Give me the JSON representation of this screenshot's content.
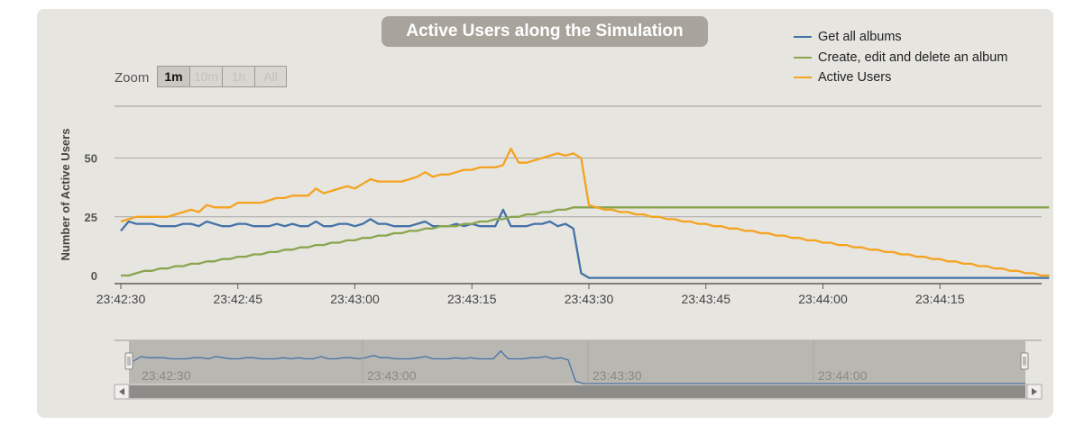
{
  "chart_data": {
    "type": "line",
    "title": "Active Users along the Simulation",
    "ylabel": "Number of Active Users",
    "xlabel": "",
    "ylim": [
      -5,
      75
    ],
    "yticks": [
      "0",
      "25",
      "50"
    ],
    "yticks_values": [
      0,
      25,
      50
    ],
    "xticks": [
      "23:42:30",
      "23:42:45",
      "23:43:00",
      "23:43:15",
      "23:43:30",
      "23:43:45",
      "23:44:00",
      "23:44:15"
    ],
    "x_start": "23:42:30",
    "x_step_seconds": 1,
    "xlim": [
      0,
      119
    ],
    "legend_position": "top-right",
    "series": [
      {
        "name": "Get all albums",
        "color": "#4572a7",
        "values": [
          19,
          23,
          22,
          22,
          22,
          21,
          21,
          21,
          22,
          22,
          21,
          23,
          22,
          21,
          21,
          22,
          22,
          21,
          21,
          21,
          22,
          21,
          22,
          21,
          21,
          23,
          21,
          21,
          22,
          22,
          21,
          22,
          24,
          22,
          22,
          21,
          21,
          21,
          22,
          23,
          21,
          21,
          21,
          22,
          21,
          22,
          21,
          21,
          21,
          28,
          21,
          21,
          21,
          22,
          22,
          23,
          21,
          22,
          20,
          1,
          -1,
          -1,
          -1,
          -1,
          -1,
          -1,
          -1,
          -1,
          -1,
          -1,
          -1,
          -1,
          -1,
          -1,
          -1,
          -1,
          -1,
          -1,
          -1,
          -1,
          -1,
          -1,
          -1,
          -1,
          -1,
          -1,
          -1,
          -1,
          -1,
          -1,
          -1,
          -1,
          -1,
          -1,
          -1,
          -1,
          -1,
          -1,
          -1,
          -1,
          -1,
          -1,
          -1,
          -1,
          -1,
          -1,
          -1,
          -1,
          -1,
          -1,
          -1,
          -1,
          -1,
          -1,
          -1,
          -1,
          -1,
          -1,
          -1,
          -1
        ]
      },
      {
        "name": "Create, edit and delete an album",
        "color": "#89a54e",
        "values": [
          0,
          0,
          1,
          2,
          2,
          3,
          3,
          4,
          4,
          5,
          5,
          6,
          6,
          7,
          7,
          8,
          8,
          9,
          9,
          10,
          10,
          11,
          11,
          12,
          12,
          13,
          13,
          14,
          14,
          15,
          15,
          16,
          16,
          17,
          17,
          18,
          18,
          19,
          19,
          20,
          20,
          21,
          21,
          21,
          22,
          22,
          23,
          23,
          24,
          24,
          25,
          25,
          26,
          26,
          27,
          27,
          28,
          28,
          29,
          29,
          29,
          29,
          29,
          29,
          29,
          29,
          29,
          29,
          29,
          29,
          29,
          29,
          29,
          29,
          29,
          29,
          29,
          29,
          29,
          29,
          29,
          29,
          29,
          29,
          29,
          29,
          29,
          29,
          29,
          29,
          29,
          29,
          29,
          29,
          29,
          29,
          29,
          29,
          29,
          29,
          29,
          29,
          29,
          29,
          29,
          29,
          29,
          29,
          29,
          29,
          29,
          29,
          29,
          29,
          29,
          29,
          29,
          29,
          29,
          29
        ]
      },
      {
        "name": "Active Users",
        "color": "#f5a31f",
        "values": [
          23,
          24,
          25,
          25,
          25,
          25,
          25,
          26,
          27,
          28,
          27,
          30,
          29,
          29,
          29,
          31,
          31,
          31,
          31,
          32,
          33,
          33,
          34,
          34,
          34,
          37,
          35,
          36,
          37,
          38,
          37,
          39,
          41,
          40,
          40,
          40,
          40,
          41,
          42,
          44,
          42,
          43,
          43,
          44,
          45,
          45,
          46,
          46,
          46,
          47,
          54,
          48,
          48,
          49,
          50,
          51,
          52,
          51,
          52,
          50,
          30,
          29,
          28,
          28,
          27,
          27,
          26,
          26,
          25,
          25,
          24,
          24,
          23,
          23,
          22,
          22,
          21,
          21,
          20,
          20,
          19,
          19,
          18,
          18,
          17,
          17,
          16,
          16,
          15,
          15,
          14,
          14,
          13,
          13,
          12,
          12,
          11,
          11,
          10,
          10,
          9,
          9,
          8,
          8,
          7,
          7,
          6,
          6,
          5,
          5,
          4,
          4,
          3,
          3,
          2,
          2,
          1,
          1,
          0,
          0
        ]
      }
    ],
    "navigator": {
      "xticks": [
        "23:42:30",
        "23:43:00",
        "23:43:30",
        "23:44:00"
      ]
    }
  },
  "zoom": {
    "label": "Zoom",
    "buttons": [
      {
        "label": "1m",
        "active": true
      },
      {
        "label": "10m",
        "active": false
      },
      {
        "label": "1h",
        "active": false
      },
      {
        "label": "All",
        "active": false
      }
    ]
  }
}
